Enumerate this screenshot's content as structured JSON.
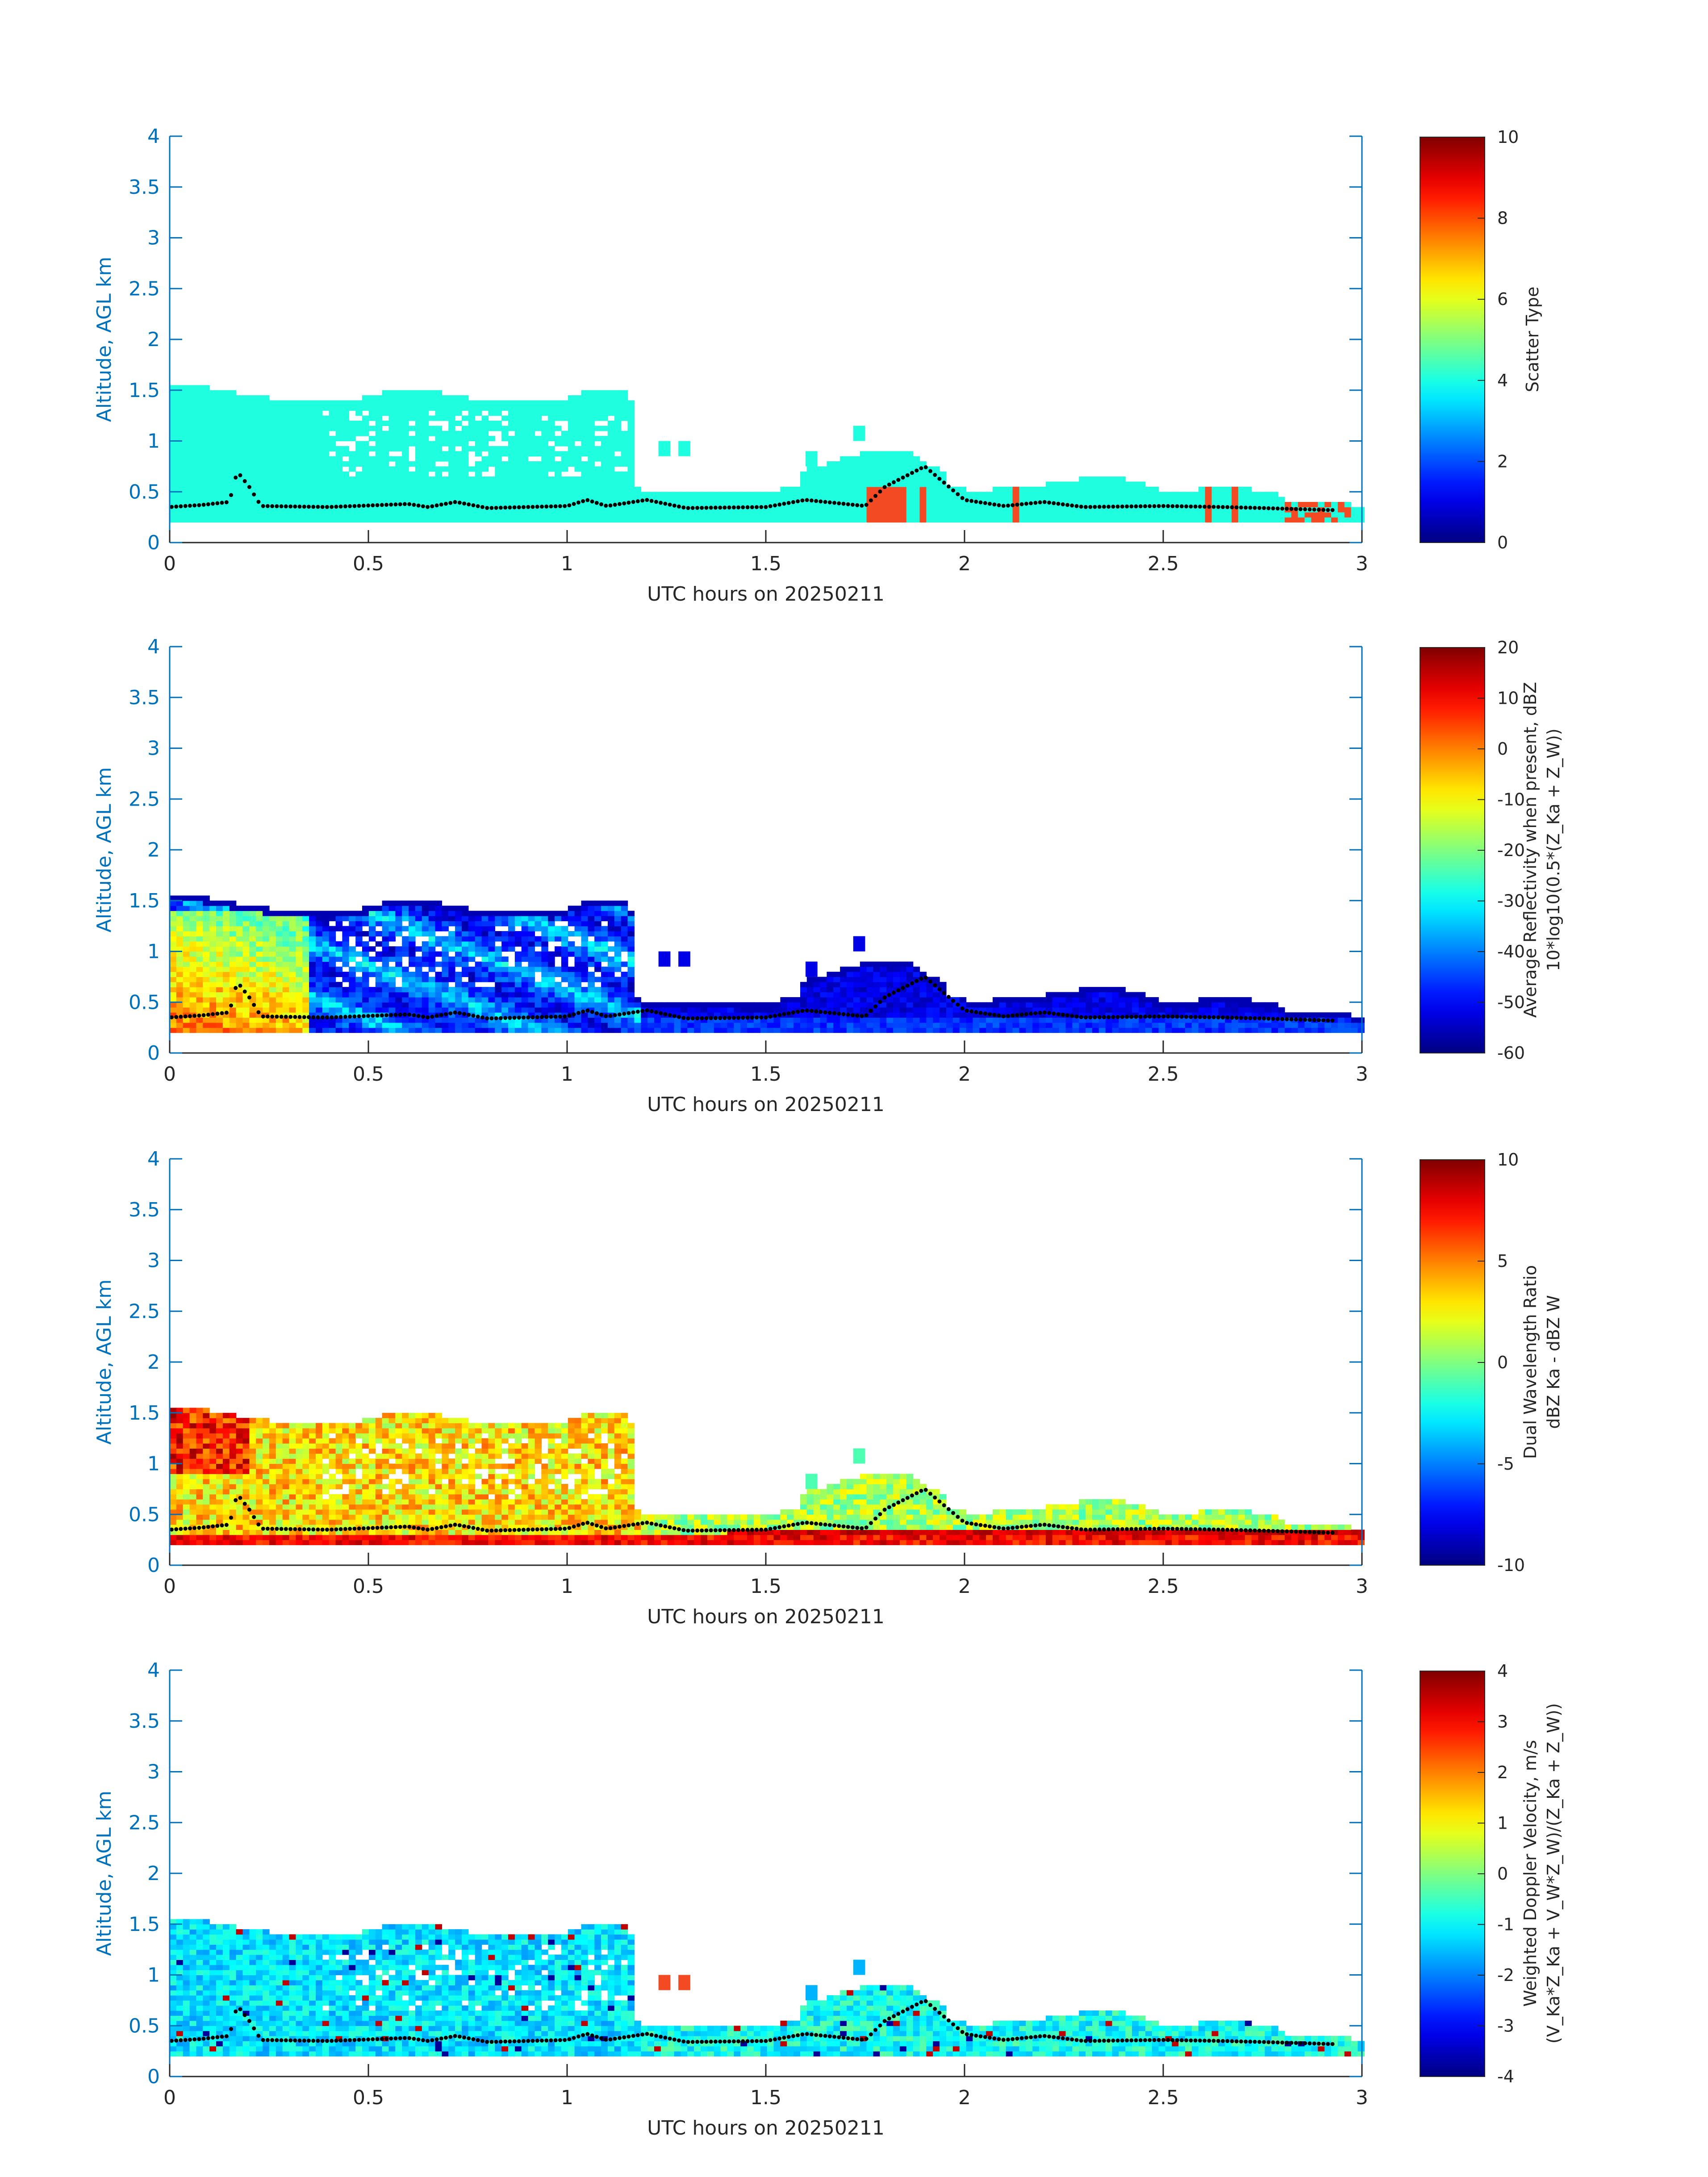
{
  "figure": {
    "colors": {
      "axis_blue": "#0072bd",
      "text_dark": "#262626",
      "scatter_cyan": "#1fffdf",
      "scatter_red": "#f44a24",
      "boundary_marker": "#000000"
    }
  },
  "chart_data": [
    {
      "type": "heatmap",
      "title": "",
      "xlabel": "UTC hours on 20250211",
      "ylabel": "Altitude, AGL km",
      "xlim": [
        0,
        3
      ],
      "ylim": [
        0,
        4
      ],
      "xticks": [
        "0",
        "0.5",
        "1",
        "1.5",
        "2",
        "2.5",
        "3"
      ],
      "yticks": [
        "0",
        "0.5",
        "1",
        "1.5",
        "2",
        "2.5",
        "3",
        "3.5",
        "4"
      ],
      "colorbar": {
        "label_lines": [
          "Scatter Type"
        ],
        "ticks": [
          "0",
          "2",
          "4",
          "6",
          "8",
          "10"
        ],
        "range": [
          0,
          10
        ],
        "colormap": "jet"
      },
      "field": "scatter_type",
      "dominant_value": 3.6,
      "secondary_value": 8.3,
      "boundary_layer_km": 0.35
    },
    {
      "type": "heatmap",
      "title": "",
      "xlabel": "UTC hours on 20250211",
      "ylabel": "Altitude, AGL km",
      "xlim": [
        0,
        3
      ],
      "ylim": [
        0,
        4
      ],
      "xticks": [
        "0",
        "0.5",
        "1",
        "1.5",
        "2",
        "2.5",
        "3"
      ],
      "yticks": [
        "0",
        "0.5",
        "1",
        "1.5",
        "2",
        "2.5",
        "3",
        "3.5",
        "4"
      ],
      "colorbar": {
        "label_lines": [
          "Average Reflectivity when present, dBZ",
          "10*log10(0.5*(Z_Ka + Z_W))"
        ],
        "ticks": [
          "-60",
          "-50",
          "-40",
          "-30",
          "-20",
          "-10",
          "0",
          "10",
          "20"
        ],
        "range": [
          -60,
          20
        ],
        "colormap": "jet"
      },
      "field": "reflectivity_dbz",
      "boundary_layer_km": 0.35
    },
    {
      "type": "heatmap",
      "title": "",
      "xlabel": "UTC hours on 20250211",
      "ylabel": "Altitude, AGL km",
      "xlim": [
        0,
        3
      ],
      "ylim": [
        0,
        4
      ],
      "xticks": [
        "0",
        "0.5",
        "1",
        "1.5",
        "2",
        "2.5",
        "3"
      ],
      "yticks": [
        "0",
        "0.5",
        "1",
        "1.5",
        "2",
        "2.5",
        "3",
        "3.5",
        "4"
      ],
      "colorbar": {
        "label_lines": [
          "Dual Wavelength Ratio",
          "dBZ Ka - dBZ W"
        ],
        "ticks": [
          "-10",
          "-5",
          "0",
          "5",
          "10"
        ],
        "range": [
          -10,
          10
        ],
        "colormap": "jet"
      },
      "field": "dual_wavelength_ratio_db",
      "boundary_layer_km": 0.35
    },
    {
      "type": "heatmap",
      "title": "",
      "xlabel": "UTC hours on 20250211",
      "ylabel": "Altitude, AGL km",
      "xlim": [
        0,
        3
      ],
      "ylim": [
        0,
        4
      ],
      "xticks": [
        "0",
        "0.5",
        "1",
        "1.5",
        "2",
        "2.5",
        "3"
      ],
      "yticks": [
        "0",
        "0.5",
        "1",
        "1.5",
        "2",
        "2.5",
        "3",
        "3.5",
        "4"
      ],
      "colorbar": {
        "label_lines": [
          "Weighted Doppler Velocity, m/s",
          "(V_Ka*Z_Ka + V_W*Z_W)/(Z_Ka + Z_W))"
        ],
        "ticks": [
          "-4",
          "-3",
          "-2",
          "-1",
          "0",
          "1",
          "2",
          "3",
          "4"
        ],
        "range": [
          -4,
          4
        ],
        "colormap": "jet"
      },
      "field": "doppler_velocity_ms",
      "boundary_layer_km": 0.35
    }
  ],
  "echo_envelope": {
    "top_km": [
      [
        0.0,
        1.55
      ],
      [
        0.1,
        1.5
      ],
      [
        0.2,
        1.42
      ],
      [
        0.3,
        1.38
      ],
      [
        0.4,
        1.35
      ],
      [
        0.5,
        1.42
      ],
      [
        0.55,
        1.48
      ],
      [
        0.65,
        1.5
      ],
      [
        0.7,
        1.42
      ],
      [
        0.8,
        1.38
      ],
      [
        0.9,
        1.4
      ],
      [
        0.95,
        1.35
      ],
      [
        1.05,
        1.48
      ],
      [
        1.15,
        1.48
      ],
      [
        1.17,
        0.5
      ],
      [
        1.5,
        0.45
      ],
      [
        1.6,
        0.7
      ],
      [
        1.75,
        0.88
      ],
      [
        1.85,
        0.9
      ],
      [
        2.0,
        0.48
      ],
      [
        2.2,
        0.55
      ],
      [
        2.35,
        0.65
      ],
      [
        2.5,
        0.48
      ],
      [
        2.65,
        0.52
      ],
      [
        2.78,
        0.48
      ],
      [
        2.8,
        0.4
      ],
      [
        2.95,
        0.38
      ],
      [
        3.0,
        0.3
      ]
    ],
    "bottom_km": 0.2
  },
  "boundary_layer_top_km": [
    [
      0.0,
      0.35
    ],
    [
      0.08,
      0.37
    ],
    [
      0.15,
      0.4
    ],
    [
      0.17,
      0.7
    ],
    [
      0.2,
      0.55
    ],
    [
      0.23,
      0.36
    ],
    [
      0.4,
      0.35
    ],
    [
      0.6,
      0.38
    ],
    [
      0.65,
      0.35
    ],
    [
      0.72,
      0.4
    ],
    [
      0.8,
      0.34
    ],
    [
      1.0,
      0.36
    ],
    [
      1.05,
      0.42
    ],
    [
      1.1,
      0.36
    ],
    [
      1.2,
      0.42
    ],
    [
      1.3,
      0.34
    ],
    [
      1.5,
      0.35
    ],
    [
      1.6,
      0.42
    ],
    [
      1.75,
      0.36
    ],
    [
      1.8,
      0.55
    ],
    [
      1.9,
      0.75
    ],
    [
      2.0,
      0.42
    ],
    [
      2.1,
      0.36
    ],
    [
      2.2,
      0.4
    ],
    [
      2.3,
      0.35
    ],
    [
      2.5,
      0.36
    ],
    [
      2.65,
      0.35
    ],
    [
      2.75,
      0.34
    ],
    [
      2.92,
      0.32
    ]
  ]
}
